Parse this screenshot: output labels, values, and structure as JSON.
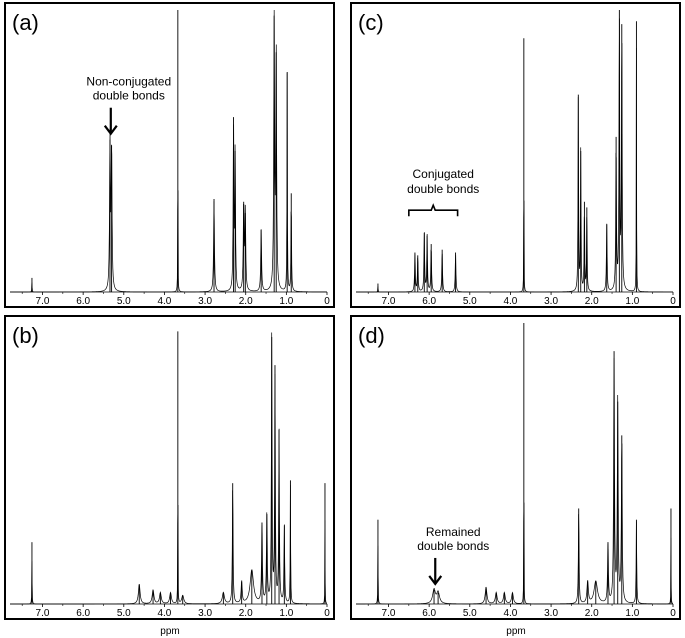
{
  "chart_data": [
    {
      "type": "line",
      "panel": "(a)",
      "x_unit": "ppm",
      "xlim": [
        7.8,
        0
      ],
      "ylim": [
        0,
        1
      ],
      "xticks": [
        "7.0",
        "6.0",
        "5.0",
        "4.0",
        "3.0",
        "2.0",
        "1.0",
        "0"
      ],
      "annotation": {
        "lines": [
          "Non-conjugated",
          "double bonds"
        ],
        "x": 5.32,
        "kind": "arrow"
      },
      "peaks": [
        {
          "x": 7.26,
          "h": 0.05,
          "w": 0.004
        },
        {
          "x": 5.34,
          "h": 0.54,
          "w": 0.012
        },
        {
          "x": 5.3,
          "h": 0.52,
          "w": 0.012
        },
        {
          "x": 3.67,
          "h": 1.0,
          "w": 0.003
        },
        {
          "x": 2.78,
          "h": 0.33,
          "w": 0.012
        },
        {
          "x": 2.3,
          "h": 0.62,
          "w": 0.01
        },
        {
          "x": 2.26,
          "h": 0.5,
          "w": 0.01
        },
        {
          "x": 2.05,
          "h": 0.32,
          "w": 0.012
        },
        {
          "x": 2.01,
          "h": 0.28,
          "w": 0.012
        },
        {
          "x": 1.62,
          "h": 0.22,
          "w": 0.012
        },
        {
          "x": 1.3,
          "h": 0.98,
          "w": 0.012
        },
        {
          "x": 1.25,
          "h": 0.85,
          "w": 0.012
        },
        {
          "x": 0.98,
          "h": 0.78,
          "w": 0.006
        },
        {
          "x": 0.88,
          "h": 0.35,
          "w": 0.008
        }
      ]
    },
    {
      "type": "line",
      "panel": "(c)",
      "x_unit": "ppm",
      "xlim": [
        7.8,
        0
      ],
      "ylim": [
        0,
        1
      ],
      "xticks": [
        "7.0",
        "6.0",
        "5.0",
        "4.0",
        "3.0",
        "2.0",
        "1.0",
        "0"
      ],
      "annotation": {
        "lines": [
          "Conjugated",
          "double bonds"
        ],
        "x_start": 6.5,
        "x_end": 5.3,
        "kind": "bracket"
      },
      "peaks": [
        {
          "x": 7.26,
          "h": 0.03,
          "w": 0.004
        },
        {
          "x": 6.35,
          "h": 0.14,
          "w": 0.01
        },
        {
          "x": 6.28,
          "h": 0.13,
          "w": 0.01
        },
        {
          "x": 6.12,
          "h": 0.21,
          "w": 0.01
        },
        {
          "x": 6.05,
          "h": 0.2,
          "w": 0.01
        },
        {
          "x": 5.95,
          "h": 0.17,
          "w": 0.01
        },
        {
          "x": 5.68,
          "h": 0.15,
          "w": 0.01
        },
        {
          "x": 5.35,
          "h": 0.14,
          "w": 0.01
        },
        {
          "x": 3.67,
          "h": 0.9,
          "w": 0.003
        },
        {
          "x": 2.33,
          "h": 0.7,
          "w": 0.008
        },
        {
          "x": 2.27,
          "h": 0.5,
          "w": 0.008
        },
        {
          "x": 2.18,
          "h": 0.32,
          "w": 0.008
        },
        {
          "x": 2.12,
          "h": 0.3,
          "w": 0.008
        },
        {
          "x": 1.63,
          "h": 0.24,
          "w": 0.01
        },
        {
          "x": 1.4,
          "h": 0.55,
          "w": 0.01
        },
        {
          "x": 1.32,
          "h": 1.0,
          "w": 0.01
        },
        {
          "x": 1.26,
          "h": 0.95,
          "w": 0.01
        },
        {
          "x": 0.9,
          "h": 0.96,
          "w": 0.004
        }
      ]
    },
    {
      "type": "line",
      "panel": "(b)",
      "x_unit": "ppm",
      "xlim": [
        7.8,
        0
      ],
      "ylim": [
        0,
        1
      ],
      "xlabel": "ppm",
      "xticks": [
        "7.0",
        "6.0",
        "5.0",
        "4.0",
        "3.0",
        "2.0",
        "1.0",
        "0"
      ],
      "peaks": [
        {
          "x": 7.26,
          "h": 0.22,
          "w": 0.004
        },
        {
          "x": 4.62,
          "h": 0.07,
          "w": 0.025
        },
        {
          "x": 4.28,
          "h": 0.05,
          "w": 0.025
        },
        {
          "x": 4.1,
          "h": 0.04,
          "w": 0.025
        },
        {
          "x": 3.85,
          "h": 0.04,
          "w": 0.025
        },
        {
          "x": 3.67,
          "h": 0.97,
          "w": 0.003
        },
        {
          "x": 3.55,
          "h": 0.03,
          "w": 0.03
        },
        {
          "x": 2.55,
          "h": 0.04,
          "w": 0.03
        },
        {
          "x": 2.32,
          "h": 0.43,
          "w": 0.01
        },
        {
          "x": 2.1,
          "h": 0.08,
          "w": 0.015
        },
        {
          "x": 1.85,
          "h": 0.12,
          "w": 0.05
        },
        {
          "x": 1.6,
          "h": 0.29,
          "w": 0.012
        },
        {
          "x": 1.48,
          "h": 0.32,
          "w": 0.012
        },
        {
          "x": 1.36,
          "h": 0.95,
          "w": 0.01
        },
        {
          "x": 1.28,
          "h": 0.85,
          "w": 0.01
        },
        {
          "x": 1.18,
          "h": 0.62,
          "w": 0.01
        },
        {
          "x": 1.05,
          "h": 0.28,
          "w": 0.01
        },
        {
          "x": 0.9,
          "h": 0.44,
          "w": 0.006
        },
        {
          "x": 0.05,
          "h": 0.43,
          "w": 0.003
        }
      ]
    },
    {
      "type": "line",
      "panel": "(d)",
      "x_unit": "ppm",
      "xlim": [
        7.8,
        0
      ],
      "ylim": [
        0,
        1
      ],
      "xlabel": "ppm",
      "xticks": [
        "7.0",
        "6.0",
        "5.0",
        "4.0",
        "3.0",
        "2.0",
        "1.0",
        "0"
      ],
      "annotation": {
        "lines": [
          "Remained",
          "double bonds"
        ],
        "x": 5.85,
        "kind": "arrow"
      },
      "peaks": [
        {
          "x": 7.26,
          "h": 0.3,
          "w": 0.004
        },
        {
          "x": 5.88,
          "h": 0.05,
          "w": 0.04
        },
        {
          "x": 5.78,
          "h": 0.04,
          "w": 0.04
        },
        {
          "x": 4.6,
          "h": 0.06,
          "w": 0.025
        },
        {
          "x": 4.35,
          "h": 0.04,
          "w": 0.025
        },
        {
          "x": 4.15,
          "h": 0.04,
          "w": 0.025
        },
        {
          "x": 3.95,
          "h": 0.04,
          "w": 0.025
        },
        {
          "x": 3.67,
          "h": 1.0,
          "w": 0.003
        },
        {
          "x": 2.32,
          "h": 0.34,
          "w": 0.01
        },
        {
          "x": 2.1,
          "h": 0.08,
          "w": 0.02
        },
        {
          "x": 1.9,
          "h": 0.08,
          "w": 0.05
        },
        {
          "x": 1.6,
          "h": 0.22,
          "w": 0.012
        },
        {
          "x": 1.45,
          "h": 0.9,
          "w": 0.012
        },
        {
          "x": 1.36,
          "h": 0.72,
          "w": 0.012
        },
        {
          "x": 1.26,
          "h": 0.6,
          "w": 0.012
        },
        {
          "x": 0.9,
          "h": 0.3,
          "w": 0.008
        },
        {
          "x": 0.05,
          "h": 0.34,
          "w": 0.003
        }
      ]
    }
  ]
}
